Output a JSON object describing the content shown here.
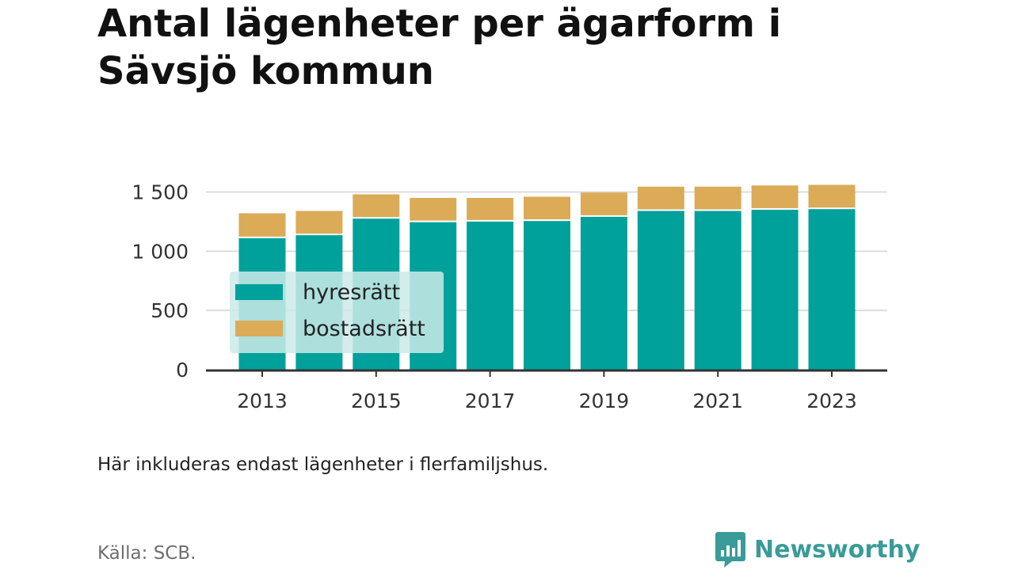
{
  "title": "Antal lägenheter per ägarform i Sävsjö kommun",
  "note": "Här inkluderas endast lägenheter i flerfamiljshus.",
  "source": "Källa: SCB.",
  "brand": "Newsworthy",
  "colors": {
    "hyresratt": "#00a19a",
    "bostadsratt": "#dbab58",
    "brand": "#3a9b98",
    "legend_bg": "#cbeae9"
  },
  "chart_data": {
    "type": "bar",
    "stacked": true,
    "x": [
      2013,
      2014,
      2015,
      2016,
      2017,
      2018,
      2019,
      2020,
      2021,
      2022,
      2023
    ],
    "x_tick_labels": [
      "2013",
      "2015",
      "2017",
      "2019",
      "2021",
      "2023"
    ],
    "series": [
      {
        "name": "hyresrätt",
        "color": "#00a19a",
        "values": [
          1110,
          1135,
          1275,
          1245,
          1250,
          1255,
          1290,
          1340,
          1340,
          1350,
          1355
        ]
      },
      {
        "name": "bostadsrätt",
        "color": "#dbab58",
        "values": [
          210,
          205,
          205,
          205,
          200,
          205,
          205,
          205,
          205,
          205,
          205
        ]
      }
    ],
    "ylim": [
      0,
      1550
    ],
    "y_ticks": [
      0,
      500,
      1000,
      1500
    ],
    "y_tick_labels": [
      "0",
      "500",
      "1 000",
      "1 500"
    ],
    "grid": true,
    "legend_position": "left-center",
    "xlabel": "",
    "ylabel": ""
  }
}
